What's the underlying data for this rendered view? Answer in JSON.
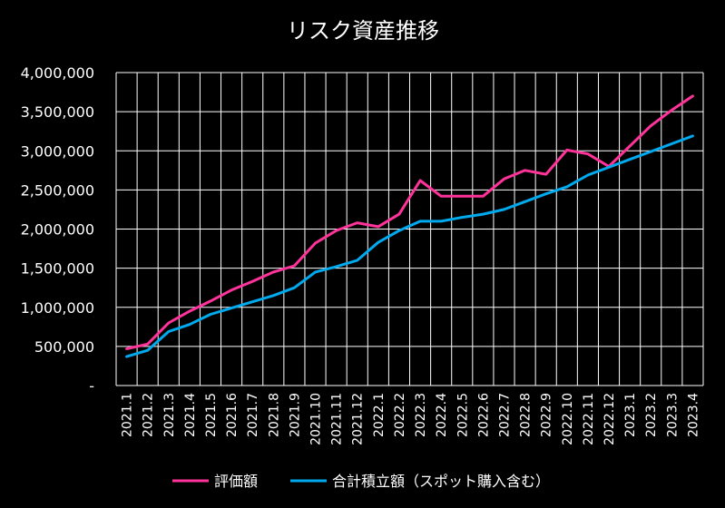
{
  "chart_data": {
    "type": "line",
    "title": "リスク資産推移",
    "xlabel": "",
    "ylabel": "",
    "ylim": [
      0,
      4000000
    ],
    "y_ticks": [
      "-",
      "500,000",
      "1,000,000",
      "1,500,000",
      "2,000,000",
      "2,500,000",
      "3,000,000",
      "3,500,000",
      "4,000,000"
    ],
    "categories": [
      "2021.1",
      "2021.2",
      "2021.3",
      "2021.4",
      "2021.5",
      "2021.6",
      "2021.7",
      "2021.8",
      "2021.9",
      "2021.10",
      "2021.11",
      "2021.12",
      "2022.1",
      "2022.2",
      "2022.3",
      "2022.4",
      "2022.5",
      "2022.6",
      "2022.7",
      "2022.8",
      "2022.9",
      "2022.10",
      "2022.11",
      "2022.12",
      "2023.1",
      "2023.2",
      "2023.3",
      "2023.4"
    ],
    "series": [
      {
        "name": "評価額",
        "color": "#ff3399",
        "values": [
          470000,
          530000,
          800000,
          950000,
          1080000,
          1220000,
          1330000,
          1450000,
          1530000,
          1820000,
          1980000,
          2080000,
          2030000,
          2190000,
          2620000,
          2420000,
          2420000,
          2420000,
          2640000,
          2750000,
          2700000,
          3010000,
          2960000,
          2800000,
          3060000,
          3320000,
          3520000,
          3700000
        ]
      },
      {
        "name": "合計積立額（スポット購入含む）",
        "color": "#00aaee",
        "values": [
          370000,
          450000,
          690000,
          780000,
          910000,
          990000,
          1070000,
          1150000,
          1250000,
          1450000,
          1520000,
          1600000,
          1830000,
          1980000,
          2100000,
          2100000,
          2150000,
          2190000,
          2250000,
          2350000,
          2450000,
          2540000,
          2690000,
          2790000,
          2890000,
          2990000,
          3090000,
          3190000
        ]
      }
    ],
    "grid": true,
    "legend": "bottom",
    "background": "#000000",
    "grid_color": "#ffffff"
  }
}
